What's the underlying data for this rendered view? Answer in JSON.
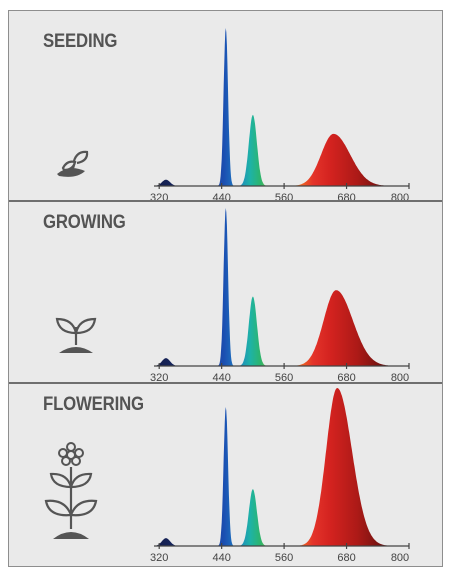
{
  "colors": {
    "background": "#eaeaea",
    "text": "#545454",
    "axis": "#444444",
    "icon": "#555555"
  },
  "sections": [
    {
      "title": "SEEDING",
      "icon": "seedling-sprout-icon"
    },
    {
      "title": "GROWING",
      "icon": "young-plant-icon"
    },
    {
      "title": "FLOWERING",
      "icon": "flowering-plant-icon"
    }
  ],
  "chart_data": [
    {
      "type": "area",
      "title": "SEEDING",
      "xlabel": "",
      "ylabel": "",
      "xlim": [
        310,
        800
      ],
      "xticks": [
        320,
        440,
        560,
        680,
        800
      ],
      "grid": false,
      "peaks": [
        {
          "wavelength": 333,
          "height": 0.04,
          "width": 11
        },
        {
          "wavelength": 448,
          "height": 1.0,
          "width": 6
        },
        {
          "wavelength": 500,
          "height": 0.45,
          "width": 11
        },
        {
          "wavelength": 655,
          "height": 0.33,
          "width": 45
        }
      ]
    },
    {
      "type": "area",
      "title": "GROWING",
      "xlabel": "",
      "ylabel": "",
      "xlim": [
        310,
        800
      ],
      "xticks": [
        320,
        440,
        560,
        680,
        800
      ],
      "grid": false,
      "peaks": [
        {
          "wavelength": 333,
          "height": 0.05,
          "width": 11
        },
        {
          "wavelength": 448,
          "height": 1.0,
          "width": 6
        },
        {
          "wavelength": 500,
          "height": 0.44,
          "width": 11
        },
        {
          "wavelength": 660,
          "height": 0.48,
          "width": 45
        }
      ]
    },
    {
      "type": "area",
      "title": "FLOWERING",
      "xlabel": "",
      "ylabel": "",
      "xlim": [
        310,
        800
      ],
      "xticks": [
        320,
        440,
        560,
        680,
        800
      ],
      "grid": false,
      "peaks": [
        {
          "wavelength": 333,
          "height": 0.05,
          "width": 11
        },
        {
          "wavelength": 448,
          "height": 0.88,
          "width": 6
        },
        {
          "wavelength": 500,
          "height": 0.36,
          "width": 11
        },
        {
          "wavelength": 662,
          "height": 1.0,
          "width": 40
        }
      ]
    }
  ]
}
